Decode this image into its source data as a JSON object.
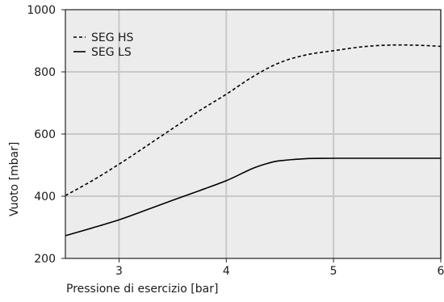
{
  "chart_data": {
    "type": "line",
    "title": "",
    "xlabel": "Pressione di esercizio [bar]",
    "ylabel": "Vuoto [mbar]",
    "xlim": [
      2.5,
      6
    ],
    "ylim": [
      200,
      1000
    ],
    "xticks": [
      3,
      4,
      5,
      6
    ],
    "yticks": [
      200,
      400,
      600,
      800,
      1000
    ],
    "grid": true,
    "legend": "top-left",
    "background": "#ececec",
    "grid_color": "#c8c8c8",
    "series": [
      {
        "name": "SEG HS",
        "style": "dashed",
        "color": "#000000",
        "x": [
          2.5,
          2.75,
          3.0,
          3.25,
          3.5,
          3.75,
          4.0,
          4.25,
          4.5,
          4.75,
          5.0,
          5.25,
          5.5,
          5.75,
          6.0
        ],
        "y": [
          402,
          450,
          503,
          560,
          618,
          675,
          728,
          785,
          830,
          855,
          868,
          880,
          886,
          886,
          882
        ]
      },
      {
        "name": "SEG LS",
        "style": "solid",
        "color": "#000000",
        "x": [
          2.5,
          2.75,
          3.0,
          3.25,
          3.5,
          3.75,
          4.0,
          4.25,
          4.4,
          4.5,
          4.75,
          5.0,
          5.5,
          6.0
        ],
        "y": [
          273,
          298,
          324,
          355,
          387,
          418,
          450,
          490,
          507,
          514,
          521,
          522,
          522,
          522
        ]
      }
    ]
  }
}
